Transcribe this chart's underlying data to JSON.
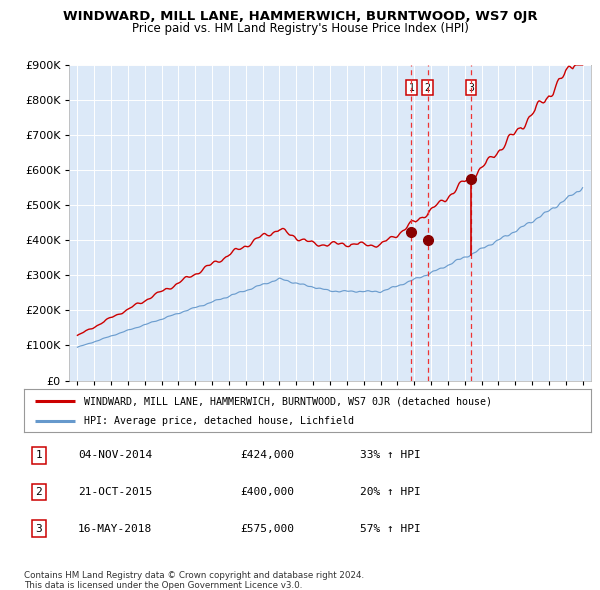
{
  "title": "WINDWARD, MILL LANE, HAMMERWICH, BURNTWOOD, WS7 0JR",
  "subtitle": "Price paid vs. HM Land Registry's House Price Index (HPI)",
  "legend_line1": "WINDWARD, MILL LANE, HAMMERWICH, BURNTWOOD, WS7 0JR (detached house)",
  "legend_line2": "HPI: Average price, detached house, Lichfield",
  "footer1": "Contains HM Land Registry data © Crown copyright and database right 2024.",
  "footer2": "This data is licensed under the Open Government Licence v3.0.",
  "table": [
    {
      "num": "1",
      "date": "04-NOV-2014",
      "price": "£424,000",
      "pct": "33% ↑ HPI"
    },
    {
      "num": "2",
      "date": "21-OCT-2015",
      "price": "£400,000",
      "pct": "20% ↑ HPI"
    },
    {
      "num": "3",
      "date": "16-MAY-2018",
      "price": "£575,000",
      "pct": "57% ↑ HPI"
    }
  ],
  "sale1_x": 2014.84,
  "sale1_y": 424000,
  "sale2_x": 2015.8,
  "sale2_y": 400000,
  "sale3_x": 2018.37,
  "sale3_y": 575000,
  "ylim": [
    0,
    900000
  ],
  "xlim_start": 1994.5,
  "xlim_end": 2025.5,
  "bg_color": "#dce9f8",
  "grid_color": "#ffffff",
  "red_line_color": "#cc0000",
  "blue_line_color": "#6699cc",
  "sale_dot_color": "#880000",
  "dashed_line_color": "#ee3333",
  "title_fontsize": 9.5,
  "subtitle_fontsize": 8.5
}
